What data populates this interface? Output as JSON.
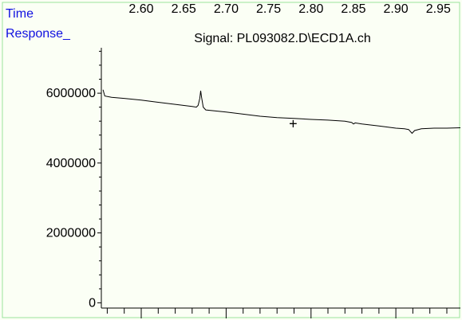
{
  "chart_data": {
    "type": "line",
    "title": "Signal: PL093082.D\\ECD1A.ch",
    "xlabel": "Time",
    "ylabel": "Response_",
    "xlim": [
      2.553,
      2.976
    ],
    "ylim": [
      -150000,
      7300000
    ],
    "x_ticks": [
      2.6,
      2.65,
      2.7,
      2.75,
      2.8,
      2.85,
      2.9,
      2.95
    ],
    "x_tick_labels": [
      "2.60",
      "2.65",
      "2.70",
      "2.75",
      "2.80",
      "2.85",
      "2.90",
      "2.95"
    ],
    "y_ticks": [
      0,
      2000000,
      4000000,
      6000000
    ],
    "y_tick_labels": [
      "0",
      "2000000",
      "4000000",
      "6000000"
    ],
    "grid": false,
    "colors": {
      "background": "#fbfff5",
      "axis_label": "#1010e0",
      "border": "#9be39b",
      "trace": "#000000"
    },
    "marker": {
      "symbol": "+",
      "x": 2.779,
      "y": 5120000
    },
    "series": [
      {
        "points": [
          [
            2.555,
            6100000
          ],
          [
            2.557,
            5920000
          ],
          [
            2.565,
            5880000
          ],
          [
            2.58,
            5850000
          ],
          [
            2.6,
            5800000
          ],
          [
            2.62,
            5740000
          ],
          [
            2.64,
            5680000
          ],
          [
            2.66,
            5620000
          ],
          [
            2.665,
            5600000
          ],
          [
            2.667,
            5650000
          ],
          [
            2.669,
            5850000
          ],
          [
            2.67,
            6070000
          ],
          [
            2.671,
            5900000
          ],
          [
            2.673,
            5600000
          ],
          [
            2.676,
            5520000
          ],
          [
            2.7,
            5460000
          ],
          [
            2.72,
            5400000
          ],
          [
            2.74,
            5340000
          ],
          [
            2.76,
            5300000
          ],
          [
            2.78,
            5280000
          ],
          [
            2.8,
            5250000
          ],
          [
            2.82,
            5230000
          ],
          [
            2.84,
            5200000
          ],
          [
            2.848,
            5160000
          ],
          [
            2.85,
            5120000
          ],
          [
            2.852,
            5150000
          ],
          [
            2.86,
            5120000
          ],
          [
            2.88,
            5060000
          ],
          [
            2.9,
            5000000
          ],
          [
            2.91,
            4980000
          ],
          [
            2.915,
            4960000
          ],
          [
            2.919,
            4850000
          ],
          [
            2.922,
            4930000
          ],
          [
            2.93,
            4980000
          ],
          [
            2.945,
            5000000
          ],
          [
            2.96,
            5000000
          ],
          [
            2.976,
            5010000
          ]
        ]
      }
    ]
  }
}
